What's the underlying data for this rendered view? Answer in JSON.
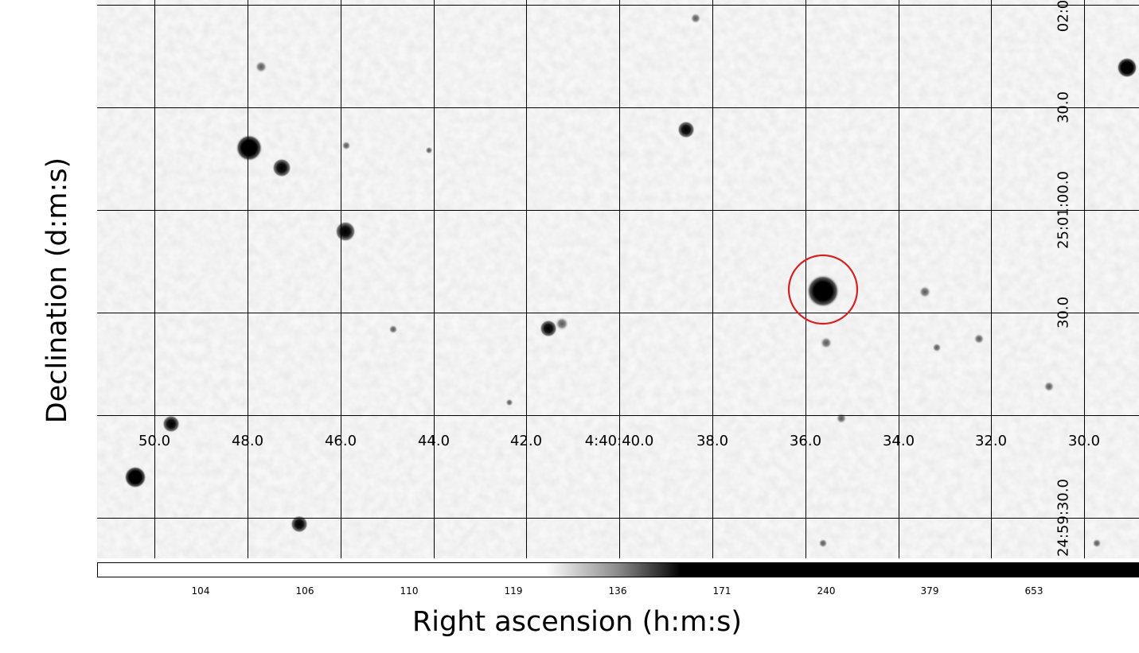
{
  "figure": {
    "xlabel": "Right ascension (h:m:s)",
    "ylabel": "Declination (d:m:s)",
    "ra_ticks": [
      "50.0",
      "48.0",
      "46.0",
      "44.0",
      "42.0",
      "4:40:40.0",
      "38.0",
      "36.0",
      "34.0",
      "32.0",
      "30.0"
    ],
    "dec_ticks": [
      "02:0",
      "30.0",
      "25:01:00.0",
      "30.0",
      "24:59:30.0"
    ],
    "colorbar_ticks": [
      "104",
      "106",
      "110",
      "119",
      "136",
      "171",
      "240",
      "379",
      "653"
    ],
    "target_circle_color": "#d42020",
    "grid_color": "#000000",
    "colormap": "greyscale (reversed)"
  }
}
